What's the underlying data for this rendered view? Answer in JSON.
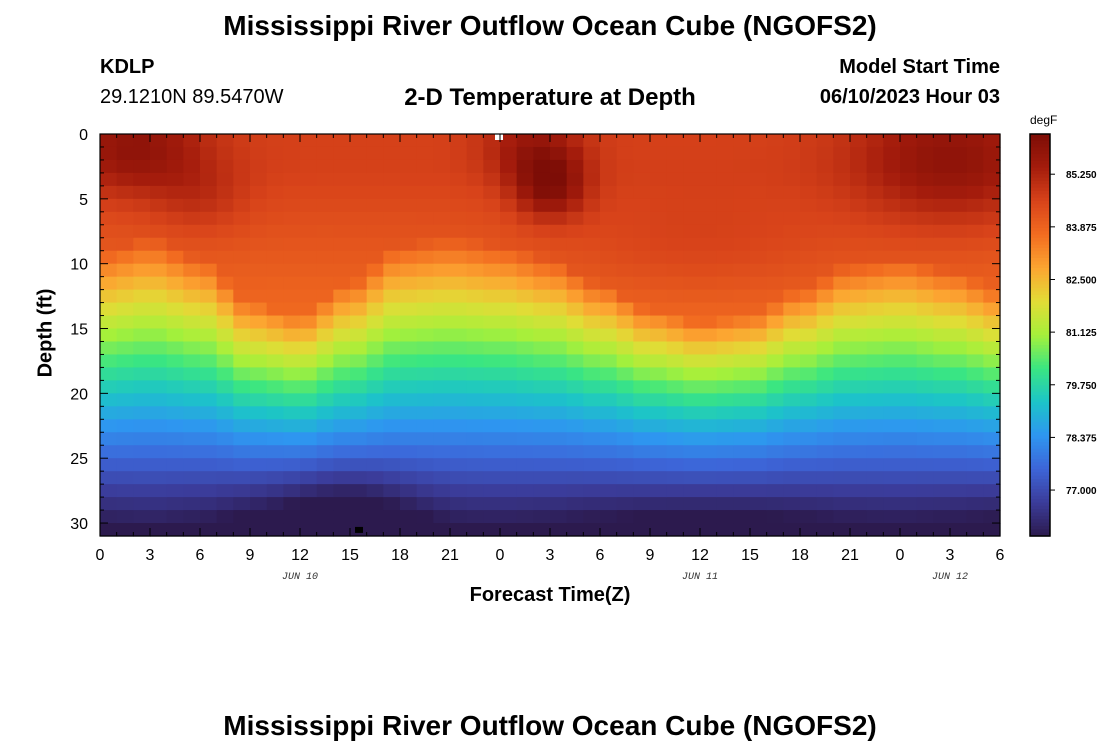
{
  "header": {
    "title": "Mississippi River Outflow Ocean Cube (NGOFS2)",
    "station_id": "KDLP",
    "station_coords": "29.1210N  89.5470W",
    "subtitle": "2-D Temperature at Depth",
    "model_label": "Model Start Time",
    "model_time": "06/10/2023 Hour 03"
  },
  "footer": {
    "title": "Mississippi River Outflow Ocean Cube (NGOFS2)"
  },
  "chart_data": {
    "type": "heatmap",
    "title": "2-D Temperature at Depth",
    "xlabel": "Forecast Time(Z)",
    "ylabel": "Depth (ft)",
    "x_unit": "hours since 2023-06-10 00Z",
    "xlim": [
      0,
      54
    ],
    "ylim": [
      0,
      31
    ],
    "y_reversed": true,
    "x_ticks": [
      {
        "value": 0,
        "label": "0"
      },
      {
        "value": 3,
        "label": "3"
      },
      {
        "value": 6,
        "label": "6"
      },
      {
        "value": 9,
        "label": "9"
      },
      {
        "value": 12,
        "label": "12"
      },
      {
        "value": 15,
        "label": "15"
      },
      {
        "value": 18,
        "label": "18"
      },
      {
        "value": 21,
        "label": "21"
      },
      {
        "value": 24,
        "label": "0"
      },
      {
        "value": 27,
        "label": "3"
      },
      {
        "value": 30,
        "label": "6"
      },
      {
        "value": 33,
        "label": "9"
      },
      {
        "value": 36,
        "label": "12"
      },
      {
        "value": 39,
        "label": "15"
      },
      {
        "value": 42,
        "label": "18"
      },
      {
        "value": 45,
        "label": "21"
      },
      {
        "value": 48,
        "label": "0"
      },
      {
        "value": 51,
        "label": "3"
      },
      {
        "value": 54,
        "label": "6"
      }
    ],
    "y_ticks": [
      0,
      5,
      10,
      15,
      20,
      25,
      30
    ],
    "day_labels": [
      {
        "value": 12,
        "label": "JUN 10"
      },
      {
        "value": 36,
        "label": "JUN 11"
      },
      {
        "value": 51,
        "label": "JUN 12"
      }
    ],
    "colorbar": {
      "unit": "degF",
      "min": 75.8,
      "max": 86.3,
      "ticks": [
        {
          "value": 85.25,
          "label": "85.250"
        },
        {
          "value": 83.875,
          "label": "83.875"
        },
        {
          "value": 82.5,
          "label": "82.500"
        },
        {
          "value": 81.125,
          "label": "81.125"
        },
        {
          "value": 79.75,
          "label": "79.750"
        },
        {
          "value": 78.375,
          "label": "78.375"
        },
        {
          "value": 77.0,
          "label": "77.000"
        }
      ],
      "colors": [
        "#2c1a4e",
        "#3b3c9a",
        "#3d65d8",
        "#2e96f0",
        "#1cc4c8",
        "#3ae682",
        "#a6f03a",
        "#e2dc36",
        "#fca531",
        "#f26c20",
        "#d8431a",
        "#a41c0c",
        "#7d0d06"
      ]
    },
    "temperature_model": {
      "description": "Estimated temperature field: warm surface layer whose thickness oscillates tidally with time",
      "x_step_hours": 1,
      "depth_step_ft": 1,
      "surface_temp_degF": 84.6,
      "bottom_temp_degF": 76.0,
      "mixed_layer_base_ft": [
        {
          "t": 0,
          "d": 12.0
        },
        {
          "t": 3,
          "d": 11.0
        },
        {
          "t": 6,
          "d": 12.5
        },
        {
          "t": 9,
          "d": 16.0
        },
        {
          "t": 12,
          "d": 17.0
        },
        {
          "t": 15,
          "d": 14.5
        },
        {
          "t": 18,
          "d": 11.5
        },
        {
          "t": 21,
          "d": 11.0
        },
        {
          "t": 24,
          "d": 11.5
        },
        {
          "t": 27,
          "d": 12.5
        },
        {
          "t": 30,
          "d": 14.5
        },
        {
          "t": 33,
          "d": 16.5
        },
        {
          "t": 36,
          "d": 17.5
        },
        {
          "t": 39,
          "d": 17.0
        },
        {
          "t": 42,
          "d": 15.0
        },
        {
          "t": 45,
          "d": 13.0
        },
        {
          "t": 48,
          "d": 12.5
        },
        {
          "t": 51,
          "d": 13.5
        },
        {
          "t": 54,
          "d": 15.0
        }
      ],
      "hot_spots": [
        {
          "t": 2,
          "d": 1,
          "amp": 1.3,
          "st": 3,
          "sd": 2.5
        },
        {
          "t": 26,
          "d": 1,
          "amp": 1.0,
          "st": 2,
          "sd": 2.0
        },
        {
          "t": 27,
          "d": 4,
          "amp": 1.6,
          "st": 1.5,
          "sd": 1.8
        },
        {
          "t": 51,
          "d": 2,
          "amp": 1.3,
          "st": 4,
          "sd": 3.5
        },
        {
          "t": 6,
          "d": 5,
          "amp": 0.5,
          "st": 2,
          "sd": 2.0
        },
        {
          "t": 36,
          "d": 9,
          "amp": 0.4,
          "st": 6,
          "sd": 3.0
        }
      ],
      "cold_spots": [
        {
          "t": 15,
          "d": 30,
          "amp": 0.8,
          "st": 3,
          "sd": 3.0
        }
      ]
    }
  }
}
